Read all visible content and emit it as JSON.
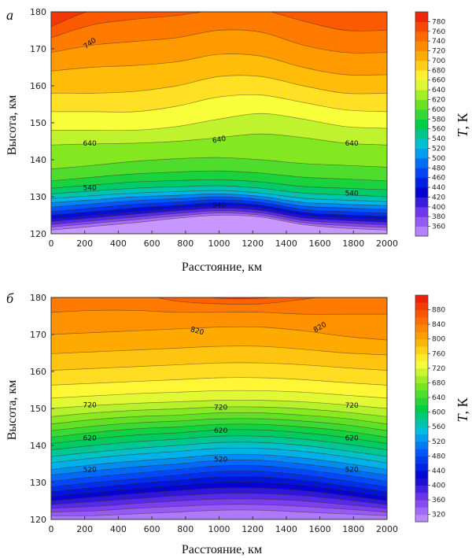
{
  "chart_data": [
    {
      "panel": "а",
      "type": "heatmap",
      "xlabel": "Расстояние, км",
      "ylabel": "Высота, км",
      "colorbar_label_italic": "T",
      "colorbar_label_unit": ", К",
      "xlim": [
        0,
        2000
      ],
      "ylim": [
        120,
        180
      ],
      "x_ticks": [
        "0",
        "200",
        "400",
        "600",
        "800",
        "1000",
        "1200",
        "1400",
        "1600",
        "1800",
        "2000"
      ],
      "y_ticks": [
        "120",
        "130",
        "140",
        "150",
        "160",
        "170",
        "180"
      ],
      "x_columns": [
        0,
        250,
        500,
        750,
        1000,
        1250,
        1500,
        1750,
        2000
      ],
      "isotherms": [
        {
          "value": 360,
          "z": [
            121.0,
            122.0,
            123.0,
            124.2,
            125.0,
            124.5,
            122.5,
            121.5,
            121.0
          ]
        },
        {
          "value": 380,
          "z": [
            121.8,
            122.8,
            123.8,
            124.8,
            125.6,
            125.0,
            123.0,
            122.2,
            121.7
          ]
        },
        {
          "value": 400,
          "z": [
            122.5,
            123.5,
            124.5,
            125.5,
            126.2,
            125.6,
            123.6,
            122.9,
            122.4
          ]
        },
        {
          "value": 420,
          "z": [
            123.3,
            124.3,
            125.3,
            126.2,
            126.9,
            126.3,
            124.3,
            123.6,
            123.1
          ]
        },
        {
          "value": 440,
          "z": [
            124.0,
            125.0,
            126.0,
            126.9,
            127.6,
            127.0,
            125.0,
            124.3,
            123.8
          ]
        },
        {
          "value": 460,
          "z": [
            125.0,
            126.0,
            127.0,
            127.7,
            128.4,
            127.7,
            125.8,
            125.1,
            124.7
          ]
        },
        {
          "value": 480,
          "z": [
            126.0,
            127.0,
            128.0,
            128.6,
            129.2,
            128.5,
            126.6,
            126.0,
            125.6
          ]
        },
        {
          "value": 500,
          "z": [
            127.2,
            128.1,
            129.0,
            129.5,
            130.0,
            129.3,
            127.5,
            127.0,
            126.6
          ]
        },
        {
          "value": 520,
          "z": [
            128.4,
            129.2,
            130.0,
            130.4,
            130.8,
            130.1,
            128.5,
            128.0,
            127.6
          ]
        },
        {
          "value": 540,
          "z": [
            129.5,
            130.3,
            131.0,
            131.4,
            131.7,
            131.0,
            129.6,
            129.1,
            128.7
          ]
        },
        {
          "value": 560,
          "z": [
            130.8,
            131.6,
            132.3,
            132.7,
            133.0,
            132.3,
            131.0,
            130.5,
            130.0
          ]
        },
        {
          "value": 580,
          "z": [
            132.3,
            133.2,
            134.0,
            134.4,
            134.6,
            134.0,
            132.8,
            132.3,
            131.9
          ]
        },
        {
          "value": 600,
          "z": [
            134.3,
            135.3,
            136.2,
            136.7,
            137.0,
            136.4,
            135.3,
            134.8,
            134.3
          ]
        },
        {
          "value": 620,
          "z": [
            137.5,
            138.5,
            139.6,
            140.3,
            140.6,
            140.0,
            139.0,
            138.5,
            138.0
          ]
        },
        {
          "value": 640,
          "z": [
            144.0,
            144.3,
            144.5,
            145.0,
            146.0,
            147.0,
            146.0,
            144.5,
            144.0
          ]
        },
        {
          "value": 660,
          "z": [
            148.0,
            148.0,
            148.0,
            149.0,
            151.0,
            152.5,
            151.0,
            149.0,
            148.5
          ]
        },
        {
          "value": 680,
          "z": [
            153.0,
            153.0,
            153.0,
            154.5,
            157.0,
            157.5,
            155.5,
            153.5,
            153.0
          ]
        },
        {
          "value": 700,
          "z": [
            158.0,
            158.0,
            158.5,
            160.0,
            162.5,
            162.5,
            160.0,
            158.0,
            158.0
          ]
        },
        {
          "value": 720,
          "z": [
            164.0,
            165.0,
            165.5,
            166.5,
            168.5,
            168.0,
            165.0,
            163.0,
            163.0
          ]
        },
        {
          "value": 740,
          "z": [
            169.0,
            171.0,
            172.0,
            173.0,
            175.0,
            174.5,
            171.0,
            169.0,
            169.0
          ]
        },
        {
          "value": 760,
          "z": [
            173.0,
            176.5,
            178.0,
            179.0,
            180.5,
            180.5,
            177.5,
            175.0,
            175.0
          ]
        },
        {
          "value": 780,
          "z": [
            176.0,
            180.5,
            181.0,
            181.0,
            181.0,
            181.0,
            181.0,
            180.0,
            180.0
          ]
        }
      ],
      "contour_labels": [
        {
          "text": "740",
          "x": 230,
          "y": 171.5,
          "rot": -35
        },
        {
          "text": "640",
          "x": 230,
          "y": 144.5,
          "rot": 0
        },
        {
          "text": "640",
          "x": 1000,
          "y": 145.5,
          "rot": -10
        },
        {
          "text": "640",
          "x": 1790,
          "y": 144.5,
          "rot": 0
        },
        {
          "text": "540",
          "x": 230,
          "y": 132.5,
          "rot": 0
        },
        {
          "text": "540",
          "x": 1000,
          "y": 127.8,
          "rot": 0
        },
        {
          "text": "540",
          "x": 1790,
          "y": 131.0,
          "rot": 0
        }
      ],
      "colorbar": {
        "min": 340,
        "max": 800,
        "step": 20,
        "tick_labels": [
          "360",
          "380",
          "400",
          "420",
          "440",
          "460",
          "480",
          "500",
          "520",
          "540",
          "560",
          "580",
          "600",
          "620",
          "640",
          "660",
          "680",
          "700",
          "720",
          "740",
          "760",
          "780"
        ]
      }
    },
    {
      "panel": "б",
      "type": "heatmap",
      "xlabel": "Расстояние, км",
      "ylabel": "Высота, км",
      "colorbar_label_italic": "T",
      "colorbar_label_unit": ", К",
      "xlim": [
        0,
        2000
      ],
      "ylim": [
        120,
        180
      ],
      "x_ticks": [
        "0",
        "200",
        "400",
        "600",
        "800",
        "1000",
        "1200",
        "1400",
        "1600",
        "1800",
        "2000"
      ],
      "y_ticks": [
        "120",
        "130",
        "140",
        "150",
        "160",
        "170",
        "180"
      ],
      "x_columns": [
        0,
        250,
        500,
        750,
        1000,
        1250,
        1500,
        1750,
        2000
      ],
      "isotherms": [
        {
          "value": 340,
          "z": [
            121.0,
            121.0,
            121.5,
            122.0,
            122.5,
            122.5,
            122.0,
            121.5,
            121.0
          ]
        },
        {
          "value": 360,
          "z": [
            122.0,
            122.3,
            123.0,
            123.5,
            124.0,
            124.0,
            123.5,
            122.8,
            122.0
          ]
        },
        {
          "value": 380,
          "z": [
            123.0,
            123.5,
            124.3,
            125.0,
            125.5,
            125.5,
            125.0,
            124.0,
            123.0
          ]
        },
        {
          "value": 400,
          "z": [
            124.0,
            124.8,
            125.6,
            126.4,
            127.0,
            127.0,
            126.4,
            125.3,
            124.0
          ]
        },
        {
          "value": 420,
          "z": [
            125.0,
            126.0,
            127.0,
            127.8,
            128.5,
            128.5,
            127.8,
            126.5,
            125.0
          ]
        },
        {
          "value": 440,
          "z": [
            126.2,
            127.3,
            128.3,
            129.2,
            130.0,
            130.0,
            129.2,
            127.8,
            126.2
          ]
        },
        {
          "value": 460,
          "z": [
            127.5,
            128.6,
            129.7,
            130.6,
            131.5,
            131.5,
            130.6,
            129.1,
            127.5
          ]
        },
        {
          "value": 480,
          "z": [
            128.8,
            130.0,
            131.0,
            132.0,
            133.0,
            133.0,
            132.0,
            130.5,
            128.8
          ]
        },
        {
          "value": 500,
          "z": [
            130.3,
            131.5,
            132.5,
            133.5,
            134.5,
            134.5,
            133.5,
            132.0,
            130.3
          ]
        },
        {
          "value": 520,
          "z": [
            132.0,
            133.2,
            134.2,
            135.0,
            136.0,
            136.0,
            135.0,
            133.6,
            132.0
          ]
        },
        {
          "value": 540,
          "z": [
            133.5,
            134.8,
            135.8,
            136.6,
            137.5,
            137.5,
            136.6,
            135.2,
            133.5
          ]
        },
        {
          "value": 560,
          "z": [
            135.3,
            136.6,
            137.6,
            138.4,
            139.2,
            139.2,
            138.4,
            137.0,
            135.3
          ]
        },
        {
          "value": 580,
          "z": [
            137.0,
            138.2,
            139.2,
            140.0,
            140.8,
            140.8,
            140.0,
            138.6,
            137.0
          ]
        },
        {
          "value": 600,
          "z": [
            138.8,
            140.0,
            141.0,
            141.7,
            142.5,
            142.5,
            141.7,
            140.4,
            138.8
          ]
        },
        {
          "value": 620,
          "z": [
            140.5,
            141.8,
            142.8,
            143.4,
            144.2,
            144.2,
            143.4,
            142.2,
            140.5
          ]
        },
        {
          "value": 640,
          "z": [
            142.2,
            143.5,
            144.5,
            145.0,
            145.7,
            145.7,
            145.0,
            143.9,
            142.2
          ]
        },
        {
          "value": 660,
          "z": [
            144.0,
            145.2,
            146.1,
            146.6,
            147.2,
            147.2,
            146.6,
            145.6,
            144.0
          ]
        },
        {
          "value": 680,
          "z": [
            145.8,
            147.0,
            147.8,
            148.2,
            148.8,
            148.8,
            148.2,
            147.3,
            145.8
          ]
        },
        {
          "value": 700,
          "z": [
            147.8,
            148.8,
            149.5,
            149.9,
            150.4,
            150.4,
            149.9,
            149.0,
            147.8
          ]
        },
        {
          "value": 720,
          "z": [
            150.0,
            150.8,
            151.4,
            151.8,
            152.2,
            152.2,
            151.8,
            151.0,
            150.0
          ]
        },
        {
          "value": 740,
          "z": [
            152.8,
            153.4,
            154.0,
            154.4,
            154.8,
            154.8,
            154.4,
            153.6,
            152.8
          ]
        },
        {
          "value": 760,
          "z": [
            156.3,
            156.8,
            157.3,
            157.8,
            158.3,
            158.3,
            157.8,
            157.0,
            156.3
          ]
        },
        {
          "value": 780,
          "z": [
            160.3,
            160.8,
            161.3,
            161.8,
            162.3,
            162.3,
            161.8,
            161.0,
            160.3
          ]
        },
        {
          "value": 800,
          "z": [
            164.8,
            165.3,
            165.8,
            166.3,
            166.8,
            166.8,
            166.0,
            165.0,
            164.5
          ]
        },
        {
          "value": 820,
          "z": [
            170.0,
            170.5,
            171.0,
            171.5,
            172.0,
            172.0,
            171.0,
            169.5,
            168.5
          ]
        },
        {
          "value": 840,
          "z": [
            176.0,
            176.5,
            176.5,
            176.0,
            176.0,
            176.0,
            175.5,
            175.5,
            175.5
          ]
        },
        {
          "value": 860,
          "z": [
            181.0,
            181.0,
            181.0,
            179.0,
            178.3,
            178.3,
            179.5,
            181.0,
            181.0
          ]
        },
        {
          "value": 880,
          "z": [
            181.0,
            181.0,
            181.0,
            181.0,
            179.8,
            179.8,
            181.0,
            181.0,
            181.0
          ]
        }
      ],
      "contour_labels": [
        {
          "text": "820",
          "x": 870,
          "y": 171.0,
          "rot": 15
        },
        {
          "text": "820",
          "x": 1600,
          "y": 172.0,
          "rot": -30
        },
        {
          "text": "720",
          "x": 230,
          "y": 151.0,
          "rot": 0
        },
        {
          "text": "720",
          "x": 1010,
          "y": 150.3,
          "rot": 0
        },
        {
          "text": "720",
          "x": 1790,
          "y": 150.8,
          "rot": 0
        },
        {
          "text": "620",
          "x": 230,
          "y": 142.0,
          "rot": 0
        },
        {
          "text": "620",
          "x": 1010,
          "y": 144.0,
          "rot": 0
        },
        {
          "text": "620",
          "x": 1790,
          "y": 142.0,
          "rot": 0
        },
        {
          "text": "520",
          "x": 230,
          "y": 133.5,
          "rot": 0
        },
        {
          "text": "520",
          "x": 1010,
          "y": 136.3,
          "rot": 0
        },
        {
          "text": "520",
          "x": 1790,
          "y": 133.5,
          "rot": 0
        }
      ],
      "colorbar": {
        "min": 300,
        "max": 920,
        "step": 20,
        "tick_labels": [
          "320",
          "360",
          "400",
          "440",
          "480",
          "520",
          "560",
          "600",
          "640",
          "680",
          "720",
          "760",
          "800",
          "840",
          "880"
        ]
      }
    }
  ]
}
